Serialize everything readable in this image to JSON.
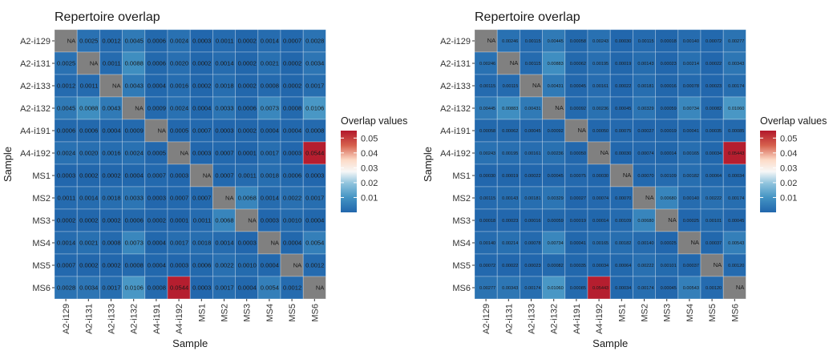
{
  "chart_data": [
    {
      "type": "heatmap",
      "title": "Repertoire overlap",
      "xlabel": "Sample",
      "ylabel": "Sample",
      "x_categories": [
        "A2-i129",
        "A2-i131",
        "A2-i133",
        "A2-i132",
        "A4-i191",
        "A4-i192",
        "MS1",
        "MS2",
        "MS3",
        "MS4",
        "MS5",
        "MS6"
      ],
      "y_categories": [
        "A2-i129",
        "A2-i131",
        "A2-i133",
        "A2-i132",
        "A4-i191",
        "A4-i192",
        "MS1",
        "MS2",
        "MS3",
        "MS4",
        "MS5",
        "MS6"
      ],
      "values": [
        [
          "NA",
          "0.0025",
          "0.0012",
          "0.0045",
          "0.0006",
          "0.0024",
          "0.0003",
          "0.0011",
          "0.0002",
          "0.0014",
          "0.0007",
          "0.0028"
        ],
        [
          "0.0025",
          "NA",
          "0.0011",
          "0.0088",
          "0.0006",
          "0.0020",
          "0.0002",
          "0.0014",
          "0.0002",
          "0.0021",
          "0.0002",
          "0.0034"
        ],
        [
          "0.0012",
          "0.0011",
          "NA",
          "0.0043",
          "0.0004",
          "0.0016",
          "0.0002",
          "0.0018",
          "0.0002",
          "0.0008",
          "0.0002",
          "0.0017"
        ],
        [
          "0.0045",
          "0.0088",
          "0.0043",
          "NA",
          "0.0009",
          "0.0024",
          "0.0004",
          "0.0033",
          "0.0006",
          "0.0073",
          "0.0008",
          "0.0106"
        ],
        [
          "0.0006",
          "0.0006",
          "0.0004",
          "0.0009",
          "NA",
          "0.0005",
          "0.0007",
          "0.0003",
          "0.0002",
          "0.0004",
          "0.0004",
          "0.0008"
        ],
        [
          "0.0024",
          "0.0020",
          "0.0016",
          "0.0024",
          "0.0005",
          "NA",
          "0.0003",
          "0.0007",
          "0.0001",
          "0.0017",
          "0.0003",
          "0.0544"
        ],
        [
          "0.0003",
          "0.0002",
          "0.0002",
          "0.0004",
          "0.0007",
          "0.0003",
          "NA",
          "0.0007",
          "0.0011",
          "0.0018",
          "0.0006",
          "0.0003"
        ],
        [
          "0.0011",
          "0.0014",
          "0.0018",
          "0.0033",
          "0.0003",
          "0.0007",
          "0.0007",
          "NA",
          "0.0068",
          "0.0014",
          "0.0022",
          "0.0017"
        ],
        [
          "0.0002",
          "0.0002",
          "0.0002",
          "0.0006",
          "0.0002",
          "0.0001",
          "0.0011",
          "0.0068",
          "NA",
          "0.0003",
          "0.0010",
          "0.0004"
        ],
        [
          "0.0014",
          "0.0021",
          "0.0008",
          "0.0073",
          "0.0004",
          "0.0017",
          "0.0018",
          "0.0014",
          "0.0003",
          "NA",
          "0.0004",
          "0.0054"
        ],
        [
          "0.0007",
          "0.0002",
          "0.0002",
          "0.0008",
          "0.0004",
          "0.0003",
          "0.0006",
          "0.0022",
          "0.0010",
          "0.0004",
          "NA",
          "0.0012"
        ],
        [
          "0.0028",
          "0.0034",
          "0.0017",
          "0.0106",
          "0.0008",
          "0.0544",
          "0.0003",
          "0.0017",
          "0.0004",
          "0.0054",
          "0.0012",
          "NA"
        ]
      ],
      "na_label": "NA",
      "legend": {
        "title": "Overlap values",
        "ticks": [
          "0.05",
          "0.04",
          "0.03",
          "0.02",
          "0.01"
        ],
        "placement": "right"
      },
      "color_scale": {
        "min": 0,
        "max": 0.055,
        "low": "#2166ac",
        "mid": "#f7f7f7",
        "high": "#b2182b",
        "midpoint": 0.0275,
        "na_color": "#808080"
      }
    },
    {
      "type": "heatmap",
      "title": "Repertoire overlap",
      "xlabel": "Sample",
      "ylabel": "Sample",
      "x_categories": [
        "A2-i129",
        "A2-i131",
        "A2-i133",
        "A2-i132",
        "A4-i191",
        "A4-i192",
        "MS1",
        "MS2",
        "MS3",
        "MS4",
        "MS5",
        "MS6"
      ],
      "y_categories": [
        "A2-i129",
        "A2-i131",
        "A2-i133",
        "A2-i132",
        "A4-i191",
        "A4-i192",
        "MS1",
        "MS2",
        "MS3",
        "MS4",
        "MS5",
        "MS6"
      ],
      "values": [
        [
          "NA",
          "0.00246",
          "0.00115",
          "0.00445",
          "0.00058",
          "0.00243",
          "0.00030",
          "0.00115",
          "0.00018",
          "0.00140",
          "0.00072",
          "0.00277"
        ],
        [
          "0.00246",
          "NA",
          "0.00115",
          "0.00883",
          "0.00062",
          "0.00195",
          "0.00019",
          "0.00143",
          "0.00023",
          "0.00214",
          "0.00022",
          "0.00343"
        ],
        [
          "0.00115",
          "0.00115",
          "NA",
          "0.00431",
          "0.00045",
          "0.00161",
          "0.00022",
          "0.00181",
          "0.00016",
          "0.00078",
          "0.00023",
          "0.00174"
        ],
        [
          "0.00445",
          "0.00883",
          "0.00431",
          "NA",
          "0.00092",
          "0.00236",
          "0.00045",
          "0.00329",
          "0.00059",
          "0.00734",
          "0.00082",
          "0.01060"
        ],
        [
          "0.00058",
          "0.00062",
          "0.00045",
          "0.00092",
          "NA",
          "0.00050",
          "0.00075",
          "0.00027",
          "0.00019",
          "0.00041",
          "0.00035",
          "0.00085"
        ],
        [
          "0.00243",
          "0.00195",
          "0.00161",
          "0.00236",
          "0.00050",
          "NA",
          "0.00030",
          "0.00074",
          "0.00014",
          "0.00165",
          "0.00034",
          "0.05443"
        ],
        [
          "0.00030",
          "0.00019",
          "0.00022",
          "0.00045",
          "0.00075",
          "0.00030",
          "NA",
          "0.00070",
          "0.00109",
          "0.00182",
          "0.00064",
          "0.00034"
        ],
        [
          "0.00115",
          "0.00143",
          "0.00181",
          "0.00329",
          "0.00027",
          "0.00074",
          "0.00070",
          "NA",
          "0.00680",
          "0.00140",
          "0.00222",
          "0.00174"
        ],
        [
          "0.00018",
          "0.00023",
          "0.00016",
          "0.00059",
          "0.00019",
          "0.00014",
          "0.00109",
          "0.00680",
          "NA",
          "0.00025",
          "0.00101",
          "0.00045"
        ],
        [
          "0.00140",
          "0.00214",
          "0.00078",
          "0.00734",
          "0.00041",
          "0.00165",
          "0.00182",
          "0.00140",
          "0.00025",
          "NA",
          "0.00037",
          "0.00543"
        ],
        [
          "0.00072",
          "0.00022",
          "0.00023",
          "0.00082",
          "0.00035",
          "0.00034",
          "0.00064",
          "0.00222",
          "0.00101",
          "0.00037",
          "NA",
          "0.00120"
        ],
        [
          "0.00277",
          "0.00343",
          "0.00174",
          "0.01060",
          "0.00085",
          "0.05443",
          "0.00034",
          "0.00174",
          "0.00045",
          "0.00543",
          "0.00120",
          "NA"
        ]
      ],
      "na_label": "NA",
      "legend": {
        "title": "Overlap values",
        "ticks": [
          "0.05",
          "0.04",
          "0.03",
          "0.02",
          "0.01"
        ],
        "placement": "right"
      },
      "color_scale": {
        "min": 0,
        "max": 0.055,
        "low": "#2166ac",
        "mid": "#f7f7f7",
        "high": "#b2182b",
        "midpoint": 0.0275,
        "na_color": "#808080"
      }
    }
  ]
}
